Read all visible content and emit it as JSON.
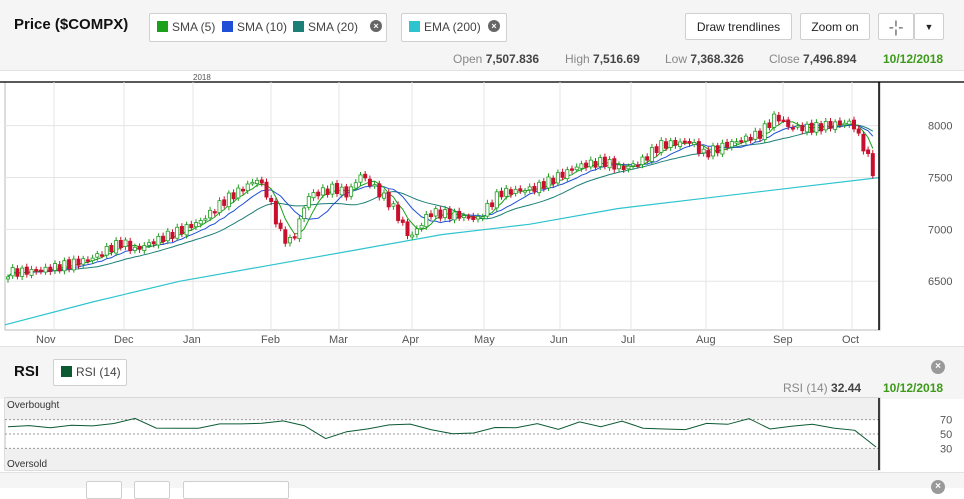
{
  "header": {
    "title": "Price ($COMPX)",
    "indicators": [
      {
        "label": "SMA (5)",
        "color": "#1aa01a"
      },
      {
        "label": "SMA (10)",
        "color": "#1f4fd6"
      },
      {
        "label": "SMA (20)",
        "color": "#1b7f77"
      },
      {
        "label": "EMA (200)",
        "color": "#2ec4cf"
      }
    ],
    "draw_trendlines": "Draw trendlines",
    "zoom_on": "Zoom on",
    "crosshair_icon": "crosshair-icon",
    "dropdown_icon": "chevron-down-icon"
  },
  "ohlc": {
    "open_label": "Open",
    "open": "7,507.836",
    "high_label": "High",
    "high": "7,516.69",
    "low_label": "Low",
    "low": "7,368.326",
    "close_label": "Close",
    "close": "7,496.894",
    "date": "10/12/2018"
  },
  "rsi_panel": {
    "title": "RSI",
    "chip": "RSI (14)",
    "chip_color": "#0c5a32",
    "readout_label": "RSI (14)",
    "readout_value": "32.44",
    "date": "10/12/2018",
    "overbought_label": "Overbought",
    "oversold_label": "Oversold",
    "levels": [
      "70",
      "50",
      "30"
    ]
  },
  "chart_data": [
    {
      "type": "candlestick",
      "x_labels": [
        "Nov",
        "Dec",
        "Jan",
        "Feb",
        "Mar",
        "Apr",
        "May",
        "Jun",
        "Jul",
        "Aug",
        "Sep",
        "Oct"
      ],
      "year_marker": "2018",
      "y_ticks": [
        8000,
        7500,
        7000,
        6500
      ],
      "ylim": [
        6030,
        8420
      ],
      "grid": true,
      "up_color": "#1f9d1f",
      "down_color": "#c8102e",
      "key_points": [
        {
          "month": "Oct 2017 (start)",
          "close": 6600
        },
        {
          "month": "Nov",
          "close": 6700
        },
        {
          "month": "Dec",
          "close": 6900
        },
        {
          "month": "Jan peak",
          "close": 7500
        },
        {
          "month": "Feb low",
          "close": 6800
        },
        {
          "month": "Mar peak",
          "close": 7600
        },
        {
          "month": "Apr low",
          "close": 6900
        },
        {
          "month": "May",
          "close": 7100
        },
        {
          "month": "Jun",
          "close": 7600
        },
        {
          "month": "Jul low",
          "close": 7500
        },
        {
          "month": "Aug",
          "close": 7850
        },
        {
          "month": "Sep peak",
          "close": 8100
        },
        {
          "month": "Oct",
          "close": 8000
        },
        {
          "month": "10/12/2018",
          "open": 7507.836,
          "high": 7516.69,
          "low": 7368.326,
          "close": 7496.894
        }
      ],
      "series": [
        {
          "name": "SMA (5)",
          "color": "#1aa01a"
        },
        {
          "name": "SMA (10)",
          "color": "#1f4fd6"
        },
        {
          "name": "SMA (20)",
          "color": "#1b7f77"
        },
        {
          "name": "EMA (200)",
          "color": "#2ec4cf",
          "values": [
            6080,
            6300,
            6500,
            6650,
            6800,
            6950,
            7050,
            7200,
            7300,
            7400,
            7500
          ]
        }
      ]
    },
    {
      "type": "line",
      "name": "RSI (14)",
      "ylim": [
        0,
        100
      ],
      "levels": [
        70,
        50,
        30
      ],
      "last_value": 32.44,
      "approx_values": [
        60,
        62,
        58,
        63,
        60,
        66,
        70,
        60,
        56,
        60,
        62,
        66,
        63,
        70,
        60,
        45,
        52,
        58,
        62,
        64,
        56,
        50,
        52,
        58,
        60,
        63,
        58,
        65,
        62,
        66,
        60,
        55,
        58,
        63,
        65,
        70,
        58,
        60,
        64,
        58,
        55,
        32
      ]
    }
  ]
}
